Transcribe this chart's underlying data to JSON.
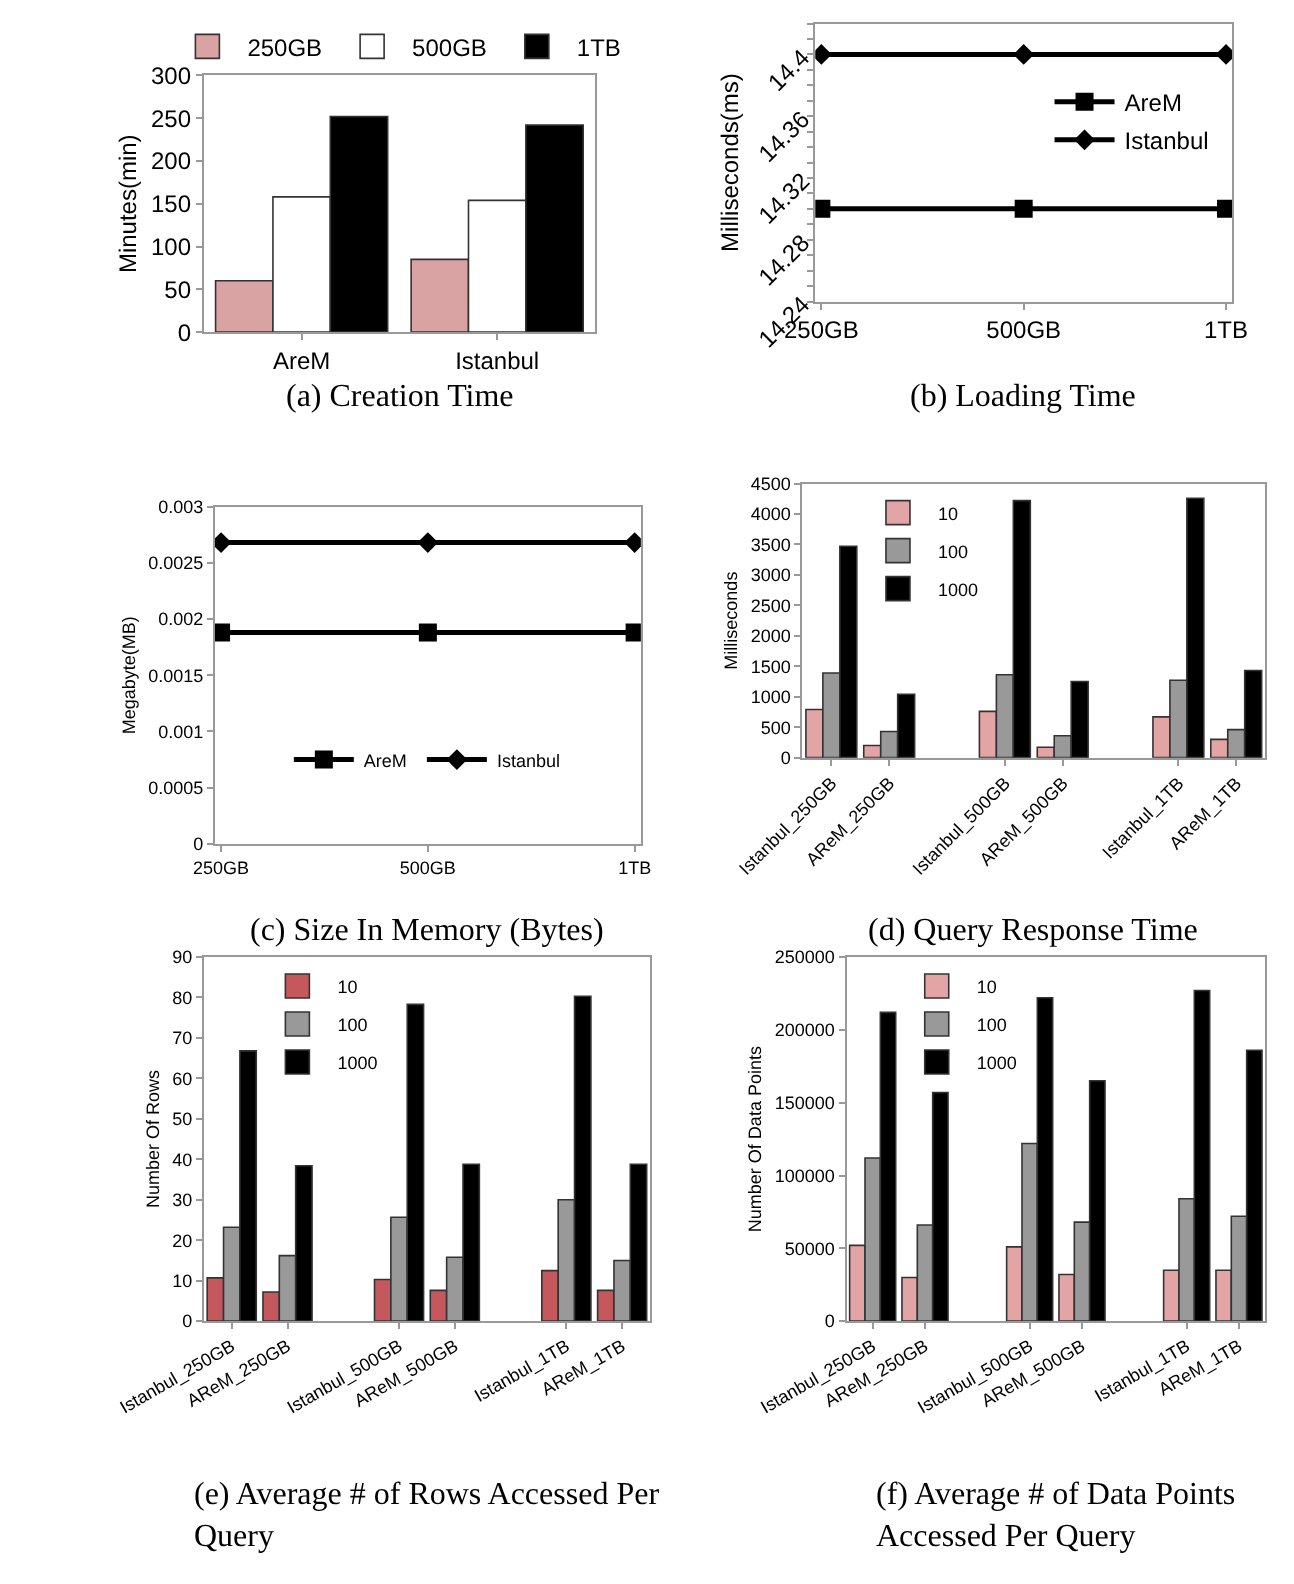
{
  "chart_data": [
    {
      "type": "bar",
      "title": "(a) Creation Time",
      "ylabel": "Minutes(min)",
      "categories": [
        "AreM",
        "Istanbul"
      ],
      "ylim": [
        0,
        300
      ],
      "yticks": [
        0,
        50,
        100,
        150,
        200,
        250,
        300
      ],
      "legend": "top",
      "series": [
        {
          "name": "250GB",
          "color": "#d9a3a3",
          "values": [
            60,
            85
          ]
        },
        {
          "name": "500GB",
          "color": "#ffffff",
          "values": [
            158,
            154
          ]
        },
        {
          "name": "1TB",
          "color": "#000000",
          "values": [
            252,
            242
          ]
        }
      ]
    },
    {
      "type": "line",
      "title": "(b) Loading Time",
      "ylabel": "Milliseconds(ms)",
      "categories": [
        "250GB",
        "500GB",
        "1TB"
      ],
      "ylim": [
        14.24,
        14.42
      ],
      "yticks": [
        14.24,
        14.28,
        14.32,
        14.36,
        14.4
      ],
      "legend": "right",
      "series": [
        {
          "name": "AreM",
          "color": "#000000",
          "marker": "square",
          "values": [
            14.3,
            14.3,
            14.3
          ]
        },
        {
          "name": "Istanbul",
          "color": "#000000",
          "marker": "diamond",
          "values": [
            14.4,
            14.4,
            14.4
          ]
        }
      ]
    },
    {
      "type": "line",
      "title": "(c) Size In Memory (Bytes)",
      "ylabel": "Megabyte(MB)",
      "categories": [
        "250GB",
        "500GB",
        "1TB"
      ],
      "ylim": [
        0,
        0.003
      ],
      "yticks": [
        0,
        0.0005,
        0.001,
        0.0015,
        0.002,
        0.0025,
        0.003
      ],
      "legend": "bottom",
      "series": [
        {
          "name": "AreM",
          "color": "#000000",
          "marker": "square",
          "values": [
            0.00188,
            0.00188,
            0.00188
          ]
        },
        {
          "name": "Istanbul",
          "color": "#000000",
          "marker": "diamond",
          "values": [
            0.00268,
            0.00268,
            0.00268
          ]
        }
      ]
    },
    {
      "type": "bar",
      "title": "(d) Query Response Time",
      "ylabel": "Milliseconds",
      "categories": [
        "Istanbul_250GB",
        "AReM_250GB",
        null,
        "Istanbul_500GB",
        "AReM_500GB",
        null,
        "Istanbul_1TB",
        "AReM_1TB"
      ],
      "ylim": [
        0,
        4500
      ],
      "yticks": [
        0,
        500,
        1000,
        1500,
        2000,
        2500,
        3000,
        3500,
        4000,
        4500
      ],
      "legend": "top left",
      "series": [
        {
          "name": "10",
          "color": "#e2a4a4",
          "values": [
            790,
            200,
            null,
            760,
            170,
            null,
            670,
            300
          ]
        },
        {
          "name": "100",
          "color": "#999999",
          "values": [
            1390,
            430,
            null,
            1360,
            360,
            null,
            1270,
            460
          ]
        },
        {
          "name": "1000",
          "color": "#000000",
          "values": [
            3470,
            1040,
            null,
            4220,
            1250,
            null,
            4260,
            1430
          ]
        }
      ]
    },
    {
      "type": "bar",
      "title": "(e) Average # of Rows Accessed Per Query",
      "ylabel": "Number Of Rows",
      "categories": [
        "Istanbul_250GB",
        "AReM_250GB",
        null,
        "Istanbul_500GB",
        "AReM_500GB",
        null,
        "Istanbul_1TB",
        "AReM_1TB"
      ],
      "ylim": [
        0,
        90
      ],
      "yticks": [
        0,
        10,
        20,
        30,
        40,
        50,
        60,
        70,
        80,
        90
      ],
      "legend": "top left",
      "series": [
        {
          "name": "10",
          "color": "#c4585c",
          "values": [
            10.7,
            7.2,
            null,
            10.3,
            7.6,
            null,
            12.5,
            7.6
          ]
        },
        {
          "name": "100",
          "color": "#999999",
          "values": [
            23.2,
            16.2,
            null,
            25.7,
            15.8,
            null,
            30,
            15
          ]
        },
        {
          "name": "1000",
          "color": "#000000",
          "values": [
            66.8,
            38.4,
            null,
            78.3,
            38.8,
            null,
            80.3,
            38.8
          ]
        }
      ]
    },
    {
      "type": "bar",
      "title": "(f) Average # of Data Points Accessed Per Query",
      "ylabel": "Number Of Data Points",
      "categories": [
        "Istanbul_250GB",
        "AReM_250GB",
        null,
        "Istanbul_500GB",
        "AReM_500GB",
        null,
        "Istanbul_1TB",
        "AReM_1TB"
      ],
      "ylim": [
        0,
        250000
      ],
      "yticks": [
        0,
        50000,
        100000,
        150000,
        200000,
        250000
      ],
      "legend": "top left",
      "series": [
        {
          "name": "10",
          "color": "#e2a4a4",
          "values": [
            52000,
            30000,
            null,
            51000,
            32000,
            null,
            35000,
            35000
          ]
        },
        {
          "name": "100",
          "color": "#999999",
          "values": [
            112000,
            66000,
            null,
            122000,
            68000,
            null,
            84000,
            72000
          ]
        },
        {
          "name": "1000",
          "color": "#000000",
          "values": [
            212000,
            157000,
            null,
            222000,
            165000,
            null,
            227000,
            186000
          ]
        }
      ]
    }
  ]
}
